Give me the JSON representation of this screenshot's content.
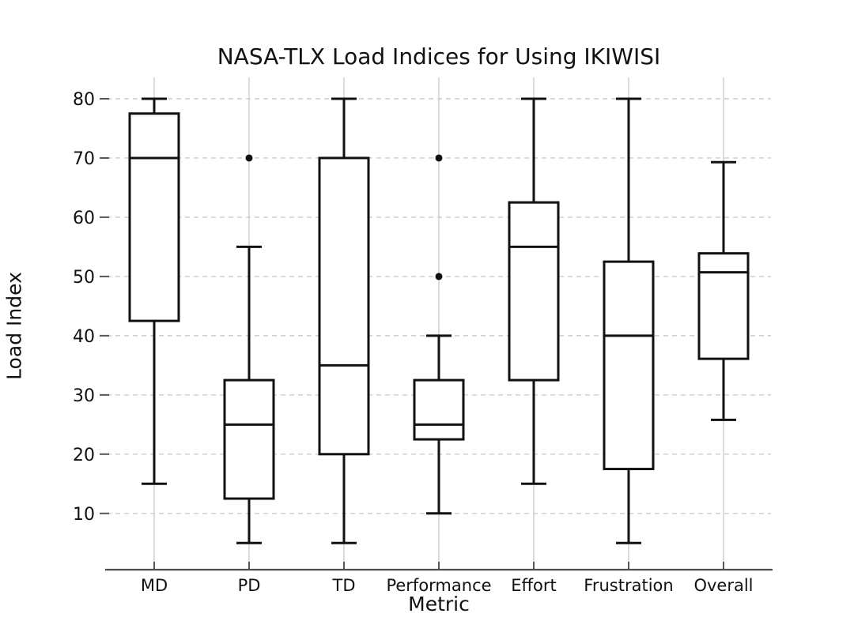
{
  "chart_data": {
    "type": "boxplot",
    "title": "NASA-TLX Load Indices for Using IKIWISI",
    "xlabel": "Metric",
    "ylabel": "Load Index",
    "categories": [
      "MD",
      "PD",
      "TD",
      "Performance",
      "Effort",
      "Frustration",
      "Overall"
    ],
    "series": [
      {
        "name": "MD",
        "whislo": 15,
        "q1": 42.5,
        "med": 70,
        "q3": 77.5,
        "whishi": 80,
        "outliers": []
      },
      {
        "name": "PD",
        "whislo": 5,
        "q1": 12.5,
        "med": 25,
        "q3": 32.5,
        "whishi": 55,
        "outliers": [
          70
        ]
      },
      {
        "name": "TD",
        "whislo": 5,
        "q1": 20,
        "med": 35,
        "q3": 70,
        "whishi": 80,
        "outliers": []
      },
      {
        "name": "Performance",
        "whislo": 10,
        "q1": 22.5,
        "med": 25,
        "q3": 32.5,
        "whishi": 40,
        "outliers": [
          50,
          70
        ]
      },
      {
        "name": "Effort",
        "whislo": 15,
        "q1": 32.5,
        "med": 55,
        "q3": 62.5,
        "whishi": 80,
        "outliers": []
      },
      {
        "name": "Frustration",
        "whislo": 5,
        "q1": 17.5,
        "med": 40,
        "q3": 52.5,
        "whishi": 80,
        "outliers": []
      },
      {
        "name": "Overall",
        "whislo": 25.8,
        "q1": 36.1,
        "med": 50.7,
        "q3": 53.9,
        "whishi": 69.3,
        "outliers": []
      }
    ],
    "yticks": [
      10,
      20,
      30,
      40,
      50,
      60,
      70,
      80
    ],
    "ylim": [
      0.5,
      83.6
    ],
    "grid": {
      "horizontal": "dashed",
      "vertical": "solid"
    },
    "legend": "none",
    "colors": {
      "box_stroke": "#111111",
      "box_fill": "#ffffff",
      "median": "#111111",
      "outlier": "#111111",
      "grid": "#cccccc",
      "axis_line": "#4d4d4d",
      "tick": "#555555",
      "text": "#111111",
      "background": "#ffffff"
    }
  }
}
